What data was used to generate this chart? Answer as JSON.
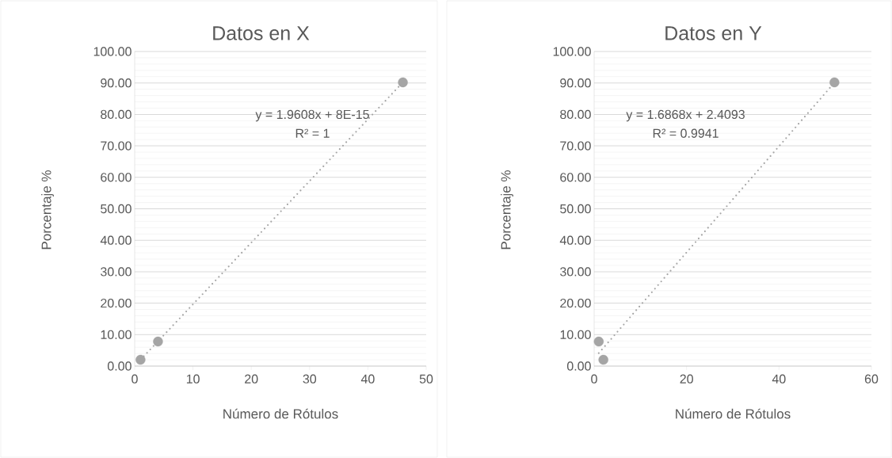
{
  "chart_data": [
    {
      "type": "scatter",
      "title": "Datos en X",
      "xlabel": "Número de Rótulos",
      "ylabel": "Porcentaje %",
      "xlim": [
        0,
        50
      ],
      "xticks": [
        0,
        10,
        20,
        30,
        40,
        50
      ],
      "ylim": [
        0,
        100
      ],
      "yticks": [
        {
          "value": 0,
          "label": "0.00"
        },
        {
          "value": 10,
          "label": "10.00"
        },
        {
          "value": 20,
          "label": "20.00"
        },
        {
          "value": 30,
          "label": "30.00"
        },
        {
          "value": 40,
          "label": "40.00"
        },
        {
          "value": 50,
          "label": "50.00"
        },
        {
          "value": 60,
          "label": "60.00"
        },
        {
          "value": 70,
          "label": "70.00"
        },
        {
          "value": 80,
          "label": "80.00"
        },
        {
          "value": 90,
          "label": "90.00"
        },
        {
          "value": 100,
          "label": "100.00"
        }
      ],
      "grid": "y",
      "marker": "circle",
      "series": [
        {
          "color": "#a5a5a5",
          "x": [
            1,
            4,
            46
          ],
          "values": [
            2.0,
            7.8,
            90.2
          ]
        },
        {
          "type": "line",
          "color": "#a5a5a5",
          "line_style": "dotted",
          "marker": "none",
          "x": [
            1,
            46
          ],
          "values": [
            2.0,
            90.2
          ]
        }
      ],
      "annotations": [
        "y = 1.9608x + 8E-15",
        "R² = 1"
      ]
    },
    {
      "type": "scatter",
      "title": "Datos en Y",
      "xlabel": "Número de Rótulos",
      "ylabel": "Porcentaje %",
      "xlim": [
        0,
        60
      ],
      "xticks": [
        0,
        20,
        40,
        60
      ],
      "ylim": [
        0,
        100
      ],
      "yticks": [
        {
          "value": 0,
          "label": "0.00"
        },
        {
          "value": 10,
          "label": "10.00"
        },
        {
          "value": 20,
          "label": "20.00"
        },
        {
          "value": 30,
          "label": "30.00"
        },
        {
          "value": 40,
          "label": "40.00"
        },
        {
          "value": 50,
          "label": "50.00"
        },
        {
          "value": 60,
          "label": "60.00"
        },
        {
          "value": 70,
          "label": "70.00"
        },
        {
          "value": 80,
          "label": "80.00"
        },
        {
          "value": 90,
          "label": "90.00"
        },
        {
          "value": 100,
          "label": "100.00"
        }
      ],
      "grid": "y",
      "marker": "circle",
      "series": [
        {
          "color": "#a5a5a5",
          "x": [
            1,
            2,
            52
          ],
          "values": [
            7.8,
            2.0,
            90.2
          ]
        },
        {
          "type": "line",
          "color": "#a5a5a5",
          "line_style": "dotted",
          "marker": "none",
          "x": [
            1,
            52
          ],
          "values": [
            4.1,
            90.1
          ]
        }
      ],
      "annotations": [
        "y = 1.6868x + 2.4093",
        "R² = 0.9941"
      ]
    }
  ]
}
